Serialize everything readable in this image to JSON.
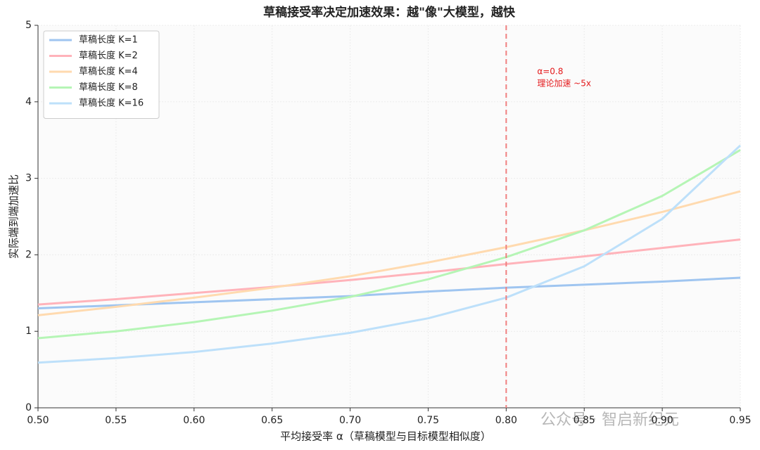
{
  "chart_data": {
    "type": "line",
    "title": "草稿接受率决定加速效果：越\"像\"大模型，越快",
    "x_label": "平均接受率 α（草稿模型与目标模型相似度）",
    "y_label": "实际端到端加速比",
    "x": [
      0.5,
      0.55,
      0.6,
      0.65,
      0.7,
      0.75,
      0.8,
      0.85,
      0.9,
      0.95
    ],
    "series": [
      {
        "name": "草稿长度 K=1",
        "color": "#9fc5f0",
        "values": [
          1.3,
          1.34,
          1.38,
          1.42,
          1.46,
          1.52,
          1.57,
          1.61,
          1.65,
          1.7
        ]
      },
      {
        "name": "草稿长度 K=2",
        "color": "#ffb3ba",
        "values": [
          1.35,
          1.42,
          1.5,
          1.58,
          1.67,
          1.77,
          1.88,
          1.98,
          2.09,
          2.2
        ]
      },
      {
        "name": "草稿长度 K=4",
        "color": "#ffdaaf",
        "values": [
          1.21,
          1.32,
          1.44,
          1.57,
          1.72,
          1.9,
          2.1,
          2.32,
          2.56,
          2.83
        ]
      },
      {
        "name": "草稿长度 K=8",
        "color": "#b5f5b5",
        "values": [
          0.91,
          1.0,
          1.12,
          1.27,
          1.45,
          1.68,
          1.97,
          2.32,
          2.77,
          3.37
        ]
      },
      {
        "name": "草稿长度 K=16",
        "color": "#bde0fa",
        "values": [
          0.59,
          0.65,
          0.73,
          0.84,
          0.98,
          1.17,
          1.44,
          1.85,
          2.47,
          3.43
        ]
      }
    ],
    "xlim": [
      0.5,
      0.95
    ],
    "ylim": [
      0,
      5
    ],
    "xticks": [
      {
        "value": 0.5,
        "label": "0.50"
      },
      0.55,
      {
        "value": 0.6,
        "label": "0.60"
      },
      0.65,
      {
        "value": 0.7,
        "label": "0.70"
      },
      0.75,
      {
        "value": 0.8,
        "label": "0.80"
      },
      0.85,
      {
        "value": 0.9,
        "label": "0.90"
      },
      0.95
    ],
    "yticks": [
      0,
      1,
      2,
      3,
      4,
      5
    ],
    "grid": true,
    "legend": "upper left",
    "vline": {
      "x": 0.8,
      "color": "#f08080"
    },
    "annotation": [
      "α=0.8",
      "理论加速 ~5x"
    ],
    "watermark": "公众号 · 智启新纪元"
  }
}
